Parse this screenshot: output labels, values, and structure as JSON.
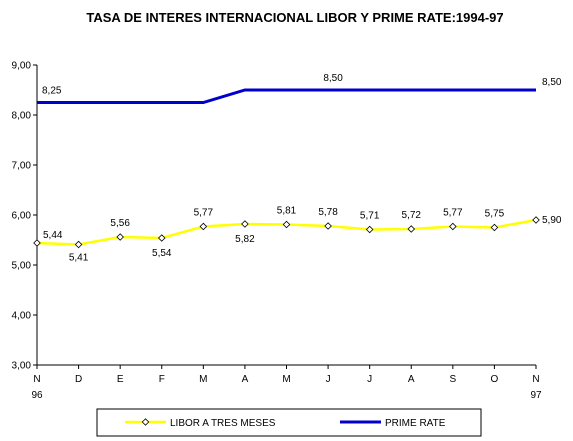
{
  "chart_data": {
    "type": "line",
    "title": "TASA DE INTERES INTERNACIONAL LIBOR Y PRIME RATE:1994-97",
    "categories": [
      "N",
      "D",
      "E",
      "F",
      "M",
      "A",
      "M",
      "J",
      "J",
      "A",
      "S",
      "O",
      "N"
    ],
    "category_years": [
      "96",
      "",
      "",
      "",
      "",
      "",
      "",
      "",
      "",
      "",
      "",
      "",
      "97"
    ],
    "ylim": [
      3.0,
      9.0
    ],
    "yticks": [
      "3,00",
      "4,00",
      "5,00",
      "6,00",
      "7,00",
      "8,00",
      "9,00"
    ],
    "ytick_values": [
      3,
      4,
      5,
      6,
      7,
      8,
      9
    ],
    "grid": false,
    "legend_position": "bottom",
    "series": [
      {
        "name": "LIBOR A TRES MESES",
        "color": "#FFFF00",
        "marker": "diamond",
        "values": [
          5.44,
          5.41,
          5.56,
          5.54,
          5.77,
          5.82,
          5.81,
          5.78,
          5.71,
          5.72,
          5.77,
          5.75,
          5.9
        ],
        "labels": [
          "5,44",
          "5,41",
          "5,56",
          "5,54",
          "5,77",
          "5,82",
          "5,81",
          "5,78",
          "5,71",
          "5,72",
          "5,77",
          "5,75",
          "5,90"
        ]
      },
      {
        "name": "PRIME RATE",
        "color": "#0000CC",
        "marker": "none",
        "values": [
          8.25,
          8.25,
          8.25,
          8.25,
          8.25,
          8.5,
          8.5,
          8.5,
          8.5,
          8.5,
          8.5,
          8.5,
          8.5
        ],
        "labels": [
          "8,25",
          "",
          "",
          "",
          "",
          "",
          "",
          "8,50",
          "",
          "",
          "",
          "",
          "8,50"
        ]
      }
    ]
  }
}
